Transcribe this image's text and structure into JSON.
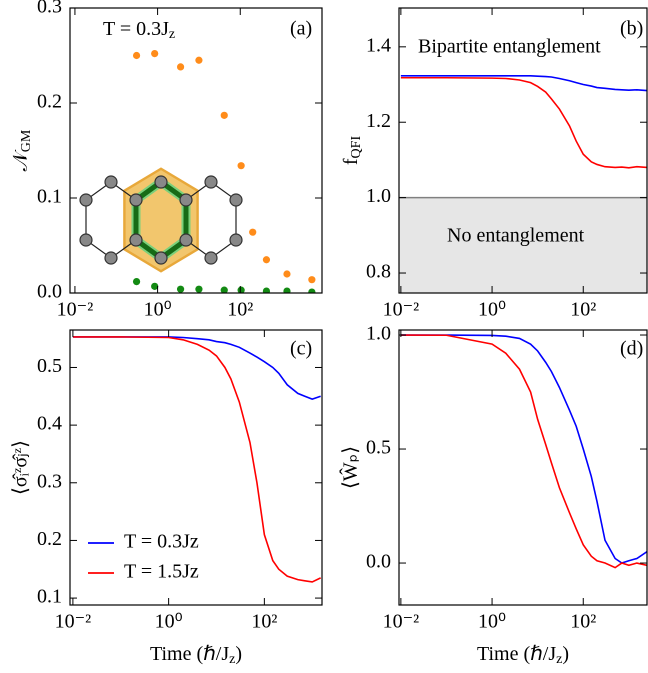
{
  "chart_data": [
    {
      "type": "scatter",
      "label": "(a)",
      "annotation": {
        "text": "T = 0.3J",
        "sub": "z"
      },
      "ylabel": {
        "text": "𝒩",
        "sub": "GM"
      },
      "xscale": "log",
      "xlim": [
        0.0076,
        9500
      ],
      "ylim": [
        0,
        0.3
      ],
      "xticks": [
        {
          "value": 0.01,
          "label": "10⁻²"
        },
        {
          "value": 1,
          "label": "10⁰"
        },
        {
          "value": 100,
          "label": "10²"
        }
      ],
      "yticks": [
        {
          "value": 0,
          "label": "0.0"
        },
        0.1,
        0.2,
        0.3
      ],
      "x": [
        0.31,
        0.85,
        3.6,
        10,
        41,
        105,
        200,
        430,
        1350,
        5400
      ],
      "series": [
        {
          "color": "#ff8c1a",
          "values": [
            0.25,
            0.252,
            0.238,
            0.245,
            0.187,
            0.134,
            0.064,
            0.035,
            0.02,
            0.014
          ]
        },
        {
          "color": "#138a13",
          "values": [
            0.012,
            0.007,
            0.004,
            0.004,
            0.003,
            0.003,
            null,
            0.002,
            0.002,
            0.001
          ]
        }
      ]
    },
    {
      "type": "line",
      "label": "(b)",
      "annotations": [
        "Bipartite entanglement",
        "No entanglement"
      ],
      "ylabel": {
        "text": "f",
        "sub": "QFI"
      },
      "xscale": "log",
      "xlim": [
        0.0091,
        2500
      ],
      "ylim": [
        0.747,
        1.503
      ],
      "xticks": [
        {
          "value": 0.01,
          "label": "10⁻²"
        },
        {
          "value": 1,
          "label": "10⁰"
        },
        {
          "value": 100,
          "label": "10²"
        }
      ],
      "yticks": [
        0.8,
        {
          "value": 1,
          "label": "1.0"
        },
        1.2,
        1.4
      ],
      "shade_below": 1,
      "shade_color": "#e6e6e6",
      "hline": 1,
      "hline_color": "#808080",
      "x": [
        0.01,
        0.1,
        1,
        2,
        4,
        7,
        10,
        15,
        20,
        30,
        50,
        70,
        100,
        150,
        200,
        300,
        500,
        700,
        1000,
        1500,
        2500
      ],
      "series": [
        {
          "color": "#0000ff",
          "values": [
            1.323,
            1.323,
            1.323,
            1.323,
            1.323,
            1.323,
            1.322,
            1.321,
            1.32,
            1.316,
            1.31,
            1.305,
            1.3,
            1.296,
            1.292,
            1.29,
            1.287,
            1.286,
            1.285,
            1.286,
            1.284
          ]
        },
        {
          "color": "#ff0000",
          "values": [
            1.318,
            1.318,
            1.317,
            1.316,
            1.312,
            1.305,
            1.295,
            1.28,
            1.262,
            1.235,
            1.19,
            1.15,
            1.115,
            1.095,
            1.088,
            1.082,
            1.08,
            1.081,
            1.079,
            1.082,
            1.08
          ]
        }
      ]
    },
    {
      "type": "line",
      "label": "(c)",
      "ylabel": "⟨σ̂ᵢᶻσ̂ⱼᶻ⟩",
      "xlabel": {
        "text": "Time (ℏ/J",
        "sub": "z",
        "after": ")"
      },
      "xscale": "log",
      "xlim": [
        0.0087,
        1600
      ],
      "ylim": [
        0.088,
        0.565
      ],
      "xticks": [
        {
          "value": 0.01,
          "label": "10⁻²"
        },
        {
          "value": 1,
          "label": "10⁰"
        },
        {
          "value": 100,
          "label": "10²"
        }
      ],
      "yticks": [
        0.1,
        0.2,
        0.3,
        0.4,
        0.5
      ],
      "legend": "lower left",
      "x": [
        0.01,
        0.1,
        1,
        2,
        4,
        7,
        10,
        15,
        20,
        30,
        50,
        70,
        100,
        150,
        200,
        300,
        500,
        700,
        1000,
        1500
      ],
      "series": [
        {
          "name": "T = 0.3Jz",
          "color": "#0000ff",
          "values": [
            0.553,
            0.553,
            0.553,
            0.552,
            0.55,
            0.548,
            0.545,
            0.543,
            0.54,
            0.535,
            0.525,
            0.518,
            0.51,
            0.5,
            0.49,
            0.47,
            0.455,
            0.45,
            0.445,
            0.45
          ]
        },
        {
          "name": "T = 1.5Jz",
          "color": "#ff0000",
          "values": [
            0.553,
            0.553,
            0.552,
            0.548,
            0.54,
            0.53,
            0.52,
            0.5,
            0.48,
            0.44,
            0.37,
            0.3,
            0.21,
            0.165,
            0.15,
            0.138,
            0.132,
            0.13,
            0.128,
            0.135
          ]
        }
      ]
    },
    {
      "type": "line",
      "label": "(d)",
      "ylabel": "⟨Ŵₚ⟩",
      "xlabel": {
        "text": "Time (ℏ/J",
        "sub": "z",
        "after": ")"
      },
      "xscale": "log",
      "xlim": [
        0.0091,
        2500
      ],
      "ylim": [
        -0.184,
        1.022
      ],
      "xticks": [
        {
          "value": 0.01,
          "label": "10⁻²"
        },
        {
          "value": 1,
          "label": "10⁰"
        },
        {
          "value": 100,
          "label": "10²"
        }
      ],
      "yticks": [
        {
          "value": 0,
          "label": "0.0"
        },
        0.5,
        {
          "value": 1,
          "label": "1.0"
        }
      ],
      "x": [
        0.01,
        0.1,
        1,
        2,
        4,
        7,
        10,
        15,
        20,
        30,
        50,
        70,
        100,
        150,
        200,
        300,
        500,
        700,
        1000,
        1500,
        2500
      ],
      "series": [
        {
          "color": "#0000ff",
          "values": [
            1,
            1,
            0.998,
            0.995,
            0.985,
            0.96,
            0.93,
            0.88,
            0.84,
            0.77,
            0.67,
            0.6,
            0.5,
            0.38,
            0.27,
            0.1,
            0.02,
            0,
            0.01,
            0.02,
            0.05
          ]
        },
        {
          "color": "#ff0000",
          "values": [
            1,
            0.999,
            0.96,
            0.92,
            0.85,
            0.75,
            0.63,
            0.52,
            0.44,
            0.33,
            0.22,
            0.15,
            0.08,
            0.03,
            0.01,
            0,
            -0.02,
            0,
            -0.01,
            0,
            -0.01
          ]
        }
      ]
    }
  ]
}
